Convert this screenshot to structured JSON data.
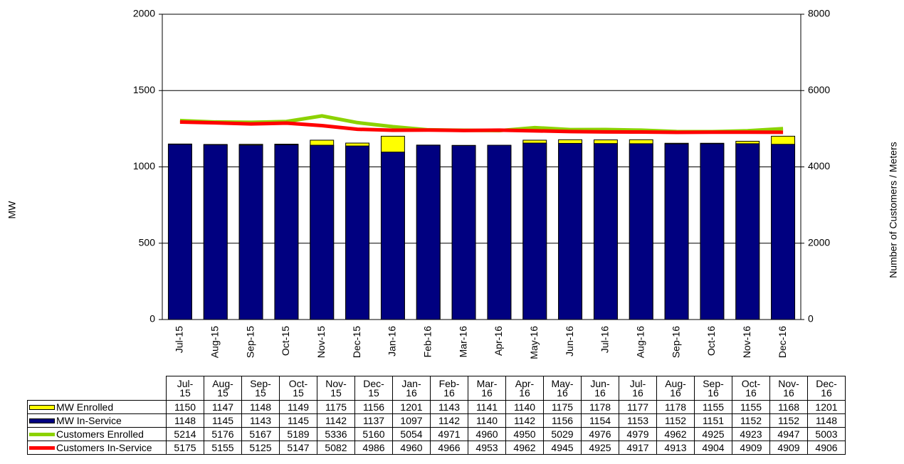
{
  "chart_data": {
    "type": "bar-line",
    "ylabel": "MW",
    "y2label": "Number of Customers / Meters",
    "categories": [
      "Jul-15",
      "Aug-15",
      "Sep-15",
      "Oct-15",
      "Nov-15",
      "Dec-15",
      "Jan-16",
      "Feb-16",
      "Mar-16",
      "Apr-16",
      "May-16",
      "Jun-16",
      "Jul-16",
      "Aug-16",
      "Sep-16",
      "Oct-16",
      "Nov-16",
      "Dec-16"
    ],
    "series": [
      {
        "name": "MW Enrolled",
        "color": "#ffff00",
        "kind": "bar",
        "values": [
          1150,
          1147,
          1148,
          1149,
          1175,
          1156,
          1201,
          1143,
          1141,
          1140,
          1175,
          1178,
          1177,
          1178,
          1155,
          1155,
          1168,
          1201
        ]
      },
      {
        "name": "MW In-Service",
        "color": "#000080",
        "kind": "bar",
        "values": [
          1148,
          1145,
          1143,
          1145,
          1142,
          1137,
          1097,
          1142,
          1140,
          1142,
          1156,
          1154,
          1153,
          1152,
          1151,
          1152,
          1152,
          1148
        ]
      },
      {
        "name": "Customers Enrolled",
        "color": "#8cd200",
        "kind": "line",
        "axis": "y2",
        "values": [
          5214,
          5176,
          5167,
          5189,
          5336,
          5160,
          5054,
          4971,
          4960,
          4950,
          5029,
          4976,
          4979,
          4962,
          4925,
          4923,
          4947,
          5003
        ]
      },
      {
        "name": "Customers In-Service",
        "color": "#ff0000",
        "kind": "line",
        "axis": "y2",
        "values": [
          5175,
          5155,
          5125,
          5147,
          5082,
          4986,
          4960,
          4966,
          4953,
          4962,
          4945,
          4925,
          4917,
          4913,
          4904,
          4909,
          4909,
          4906
        ]
      }
    ],
    "ylim": [
      0,
      2000
    ],
    "yticks": [
      0,
      500,
      1000,
      1500,
      2000
    ],
    "y2lim": [
      0,
      8000
    ],
    "y2ticks": [
      0,
      2000,
      4000,
      6000,
      8000
    ],
    "grid": true
  }
}
